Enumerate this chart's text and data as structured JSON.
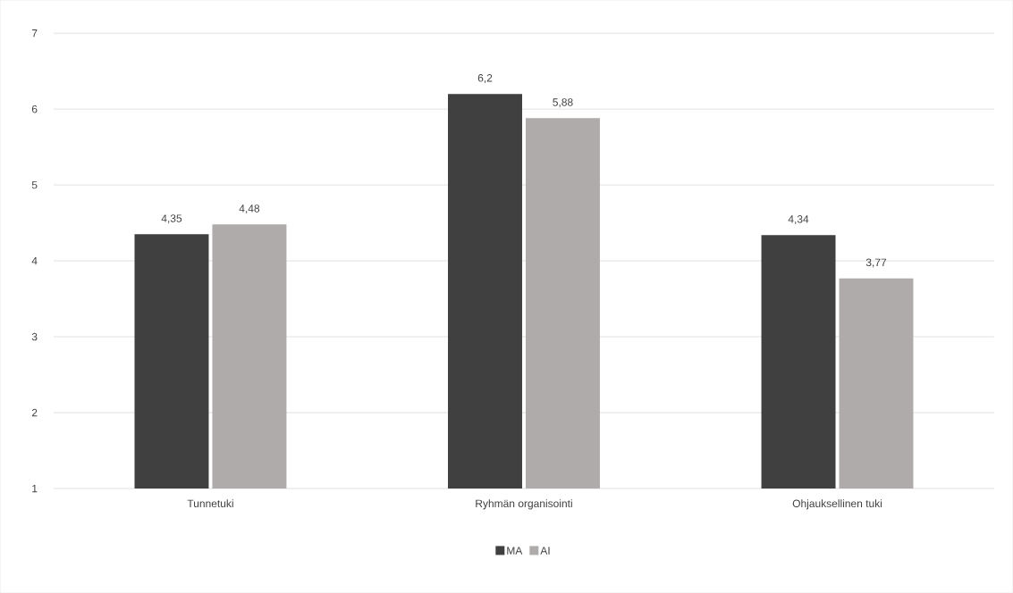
{
  "chart_data": {
    "type": "bar",
    "categories": [
      "Tunnetuki",
      "Ryhmän organisointi",
      "Ohjauksellinen tuki"
    ],
    "series": [
      {
        "name": "MA",
        "color": "#404040",
        "values": [
          4.35,
          6.2,
          4.34
        ],
        "value_labels": [
          "4,35",
          "6,2",
          "4,34"
        ]
      },
      {
        "name": "AI",
        "color": "#afabab",
        "values": [
          4.48,
          5.88,
          3.77
        ],
        "value_labels": [
          "4,48",
          "5,88",
          "3,77"
        ]
      }
    ],
    "ylim": [
      1,
      7
    ],
    "yticks": [
      1,
      2,
      3,
      4,
      5,
      6,
      7
    ],
    "grid": "y",
    "legend": "bottom"
  }
}
